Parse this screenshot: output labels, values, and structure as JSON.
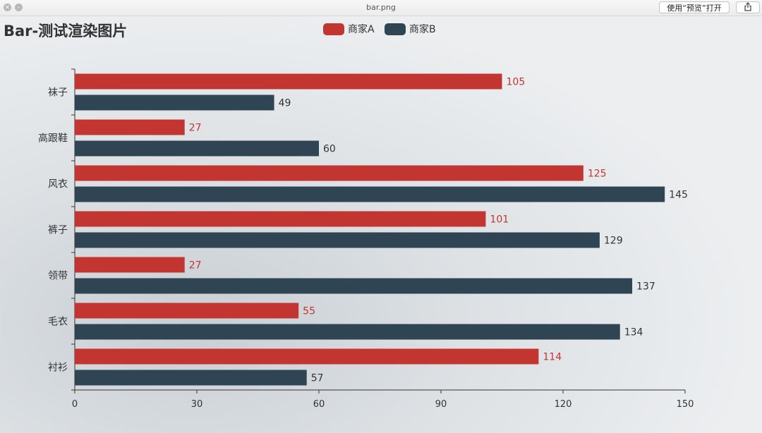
{
  "window": {
    "title": "bar.png",
    "open_button": "使用“预览”打开",
    "share_icon": "share-icon"
  },
  "chart_data": {
    "type": "bar",
    "orientation": "horizontal",
    "title": "Bar-测试渲染图片",
    "categories": [
      "衬衫",
      "毛衣",
      "领带",
      "裤子",
      "风衣",
      "高跟鞋",
      "袜子"
    ],
    "series": [
      {
        "name": "商家A",
        "color": "#c23531",
        "values": [
          114,
          55,
          27,
          101,
          125,
          27,
          105
        ]
      },
      {
        "name": "商家B",
        "color": "#2f4554",
        "values": [
          57,
          134,
          137,
          129,
          145,
          60,
          49
        ]
      }
    ],
    "xlim": [
      0,
      150
    ],
    "xticks": [
      0,
      30,
      60,
      90,
      120,
      150
    ],
    "legend_position": "top-center",
    "grid": false
  }
}
